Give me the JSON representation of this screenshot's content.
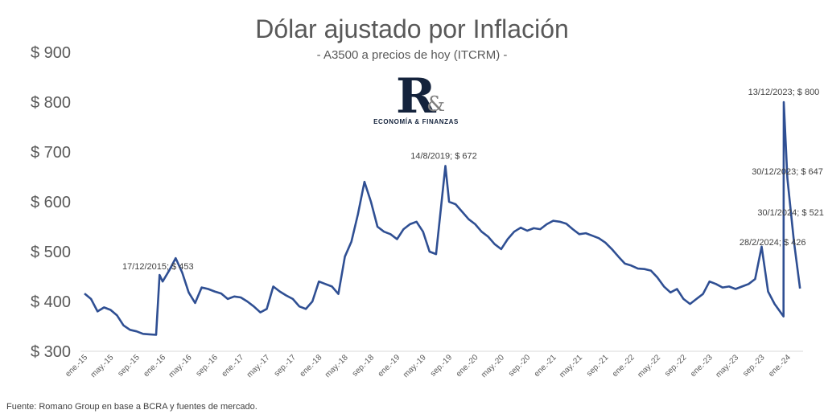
{
  "chart_data": {
    "type": "line",
    "title": "Dólar ajustado por Inflación",
    "subtitle": "- A3500 a precios de hoy (ITCRM) -",
    "source": "Fuente: Romano Group en base a BCRA y fuentes de mercado.",
    "logo": {
      "mark": "R",
      "amp": "&",
      "tagline": "ECONOMÍA & FINANZAS"
    },
    "ylim": [
      300,
      900
    ],
    "y_ticks": [
      900,
      800,
      700,
      600,
      500,
      400,
      300
    ],
    "y_tick_labels": [
      "$ 900",
      "$ 800",
      "$ 700",
      "$ 600",
      "$ 500",
      "$ 400",
      "$ 300"
    ],
    "x_tick_labels": [
      "ene.-15",
      "may.-15",
      "sep.-15",
      "ene.-16",
      "may.-16",
      "sep.-16",
      "ene.-17",
      "may.-17",
      "sep.-17",
      "ene.-18",
      "may.-18",
      "sep.-18",
      "ene.-19",
      "may.-19",
      "sep.-19",
      "ene.-20",
      "may.-20",
      "sep.-20",
      "ene.-21",
      "may.-21",
      "sep.-21",
      "ene.-22",
      "may.-22",
      "sep.-22",
      "ene.-23",
      "may.-23",
      "sep.-23",
      "ene.-24"
    ],
    "grid": false,
    "line_color": "#2f4f93",
    "series": [
      {
        "x": [
          "2015-01",
          "2015-02",
          "2015-03",
          "2015-04",
          "2015-05",
          "2015-06",
          "2015-07",
          "2015-08",
          "2015-09",
          "2015-10",
          "2015-11",
          "2015-12",
          "2015-12-17",
          "2016-01",
          "2016-02",
          "2016-03",
          "2016-04",
          "2016-05",
          "2016-06",
          "2016-07",
          "2016-08",
          "2016-09",
          "2016-10",
          "2016-11",
          "2016-12",
          "2017-01",
          "2017-02",
          "2017-03",
          "2017-04",
          "2017-05",
          "2017-06",
          "2017-07",
          "2017-08",
          "2017-09",
          "2017-10",
          "2017-11",
          "2017-12",
          "2018-01",
          "2018-02",
          "2018-03",
          "2018-04",
          "2018-05",
          "2018-06",
          "2018-07",
          "2018-08",
          "2018-09",
          "2018-10",
          "2018-11",
          "2018-12",
          "2019-01",
          "2019-02",
          "2019-03",
          "2019-04",
          "2019-05",
          "2019-06",
          "2019-07",
          "2019-08-14",
          "2019-09",
          "2019-10",
          "2019-11",
          "2019-12",
          "2020-01",
          "2020-02",
          "2020-03",
          "2020-04",
          "2020-05",
          "2020-06",
          "2020-07",
          "2020-08",
          "2020-09",
          "2020-10",
          "2020-11",
          "2020-12",
          "2021-01",
          "2021-02",
          "2021-03",
          "2021-04",
          "2021-05",
          "2021-06",
          "2021-07",
          "2021-08",
          "2021-09",
          "2021-10",
          "2021-11",
          "2021-12",
          "2022-01",
          "2022-02",
          "2022-03",
          "2022-04",
          "2022-05",
          "2022-06",
          "2022-07",
          "2022-08",
          "2022-09",
          "2022-10",
          "2022-11",
          "2022-12",
          "2023-01",
          "2023-02",
          "2023-03",
          "2023-04",
          "2023-05",
          "2023-06",
          "2023-07",
          "2023-08",
          "2023-09",
          "2023-10",
          "2023-11",
          "2023-12-12",
          "2023-12-13",
          "2023-12-30",
          "2024-01-30",
          "2024-02-28"
        ],
        "values": [
          416,
          405,
          380,
          388,
          383,
          372,
          352,
          343,
          340,
          335,
          334,
          333,
          453,
          440,
          462,
          487,
          458,
          418,
          397,
          428,
          425,
          420,
          416,
          405,
          410,
          408,
          400,
          390,
          378,
          385,
          430,
          420,
          412,
          405,
          390,
          385,
          400,
          440,
          435,
          430,
          415,
          490,
          520,
          575,
          640,
          600,
          550,
          540,
          535,
          525,
          545,
          555,
          560,
          540,
          500,
          495,
          672,
          600,
          595,
          580,
          565,
          555,
          540,
          530,
          515,
          505,
          525,
          540,
          548,
          542,
          547,
          545,
          555,
          562,
          560,
          556,
          545,
          535,
          537,
          532,
          527,
          518,
          505,
          490,
          476,
          472,
          466,
          465,
          462,
          448,
          430,
          418,
          425,
          405,
          395,
          405,
          415,
          440,
          435,
          428,
          430,
          425,
          430,
          435,
          445,
          510,
          420,
          395,
          370,
          800,
          647,
          521,
          426
        ]
      }
    ],
    "annotations": [
      {
        "text": "17/12/2015;  $ 453",
        "at": "2015-12-17",
        "value": 453
      },
      {
        "text": "14/8/2019;  $ 672",
        "at": "2019-08-14",
        "value": 672
      },
      {
        "text": "13/12/2023;  $ 800",
        "at": "2023-12-13",
        "value": 800
      },
      {
        "text": "30/12/2023;  $ 647",
        "at": "2023-12-30",
        "value": 647
      },
      {
        "text": "30/1/2024;  $ 521",
        "at": "2024-01-30",
        "value": 521
      },
      {
        "text": "28/2/2024;  $ 426",
        "at": "2024-02-28",
        "value": 426
      }
    ]
  }
}
